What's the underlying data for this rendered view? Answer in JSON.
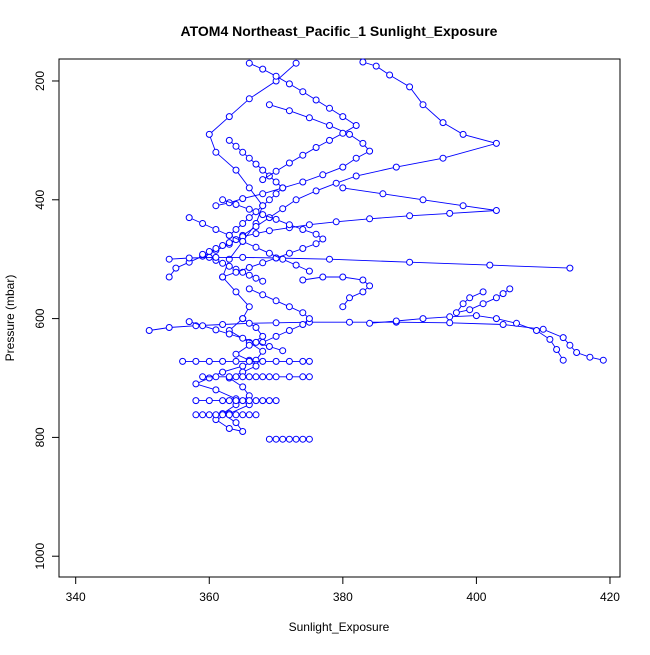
{
  "chart_data": {
    "type": "line",
    "title": "ATOM4 Northeast_Pacific_1 Sunlight_Exposure",
    "xlabel": "Sunlight_Exposure",
    "ylabel": "Pressure (mbar)",
    "xlim": [
      337.5,
      421.5
    ],
    "ylim": [
      1035,
      163
    ],
    "y_reversed": true,
    "x_ticks": [
      340,
      360,
      380,
      400,
      420
    ],
    "y_ticks": [
      200,
      400,
      600,
      800,
      1000
    ],
    "grid": false,
    "marker": "open-circle",
    "line_color": "#0000ff",
    "series": [
      {
        "x": [
          373,
          370,
          366,
          363,
          360,
          361,
          364,
          366,
          368,
          367,
          365,
          363,
          362,
          364,
          366,
          365,
          363,
          366,
          368,
          367,
          365,
          362,
          360,
          358,
          361,
          364,
          366,
          363,
          361,
          363,
          365,
          364,
          362,
          364,
          366,
          365,
          363,
          365,
          367,
          366,
          364,
          366,
          368,
          367,
          365
        ],
        "y": [
          170,
          200,
          230,
          260,
          290,
          320,
          350,
          380,
          410,
          440,
          470,
          500,
          530,
          555,
          580,
          600,
          620,
          640,
          655,
          670,
          680,
          690,
          700,
          710,
          720,
          735,
          745,
          760,
          770,
          785,
          790,
          775,
          760,
          745,
          730,
          715,
          700,
          690,
          680,
          670,
          660,
          645,
          630,
          615,
          600
        ]
      },
      {
        "x": [
          383,
          385,
          387,
          390,
          392,
          395,
          398,
          403,
          395,
          388,
          382,
          379,
          376,
          373,
          371,
          369,
          367,
          365,
          363,
          361,
          359,
          357,
          355,
          354
        ],
        "y": [
          168,
          175,
          190,
          210,
          240,
          270,
          290,
          305,
          330,
          345,
          360,
          372,
          385,
          400,
          415,
          430,
          445,
          460,
          475,
          485,
          495,
          505,
          515,
          530
        ]
      },
      {
        "x": [
          380,
          386,
          392,
          398,
          403,
          396,
          390,
          384,
          379,
          375,
          372,
          369,
          367,
          365,
          364,
          363,
          362,
          361,
          360,
          359,
          360,
          361,
          362,
          363,
          364,
          365,
          366,
          367,
          368
        ],
        "y": [
          380,
          390,
          400,
          410,
          418,
          423,
          427,
          432,
          437,
          442,
          447,
          452,
          457,
          462,
          467,
          472,
          477,
          482,
          487,
          492,
          497,
          502,
          507,
          512,
          517,
          522,
          527,
          532,
          537
        ]
      },
      {
        "x": [
          414,
          402,
          390,
          378,
          370,
          365,
          361,
          357,
          354
        ],
        "y": [
          515,
          510,
          505,
          500,
          498,
          497,
          497,
          498,
          500
        ]
      },
      {
        "x": [
          369,
          372,
          375,
          378,
          381,
          383,
          384,
          382,
          380,
          377,
          374,
          371,
          368,
          365,
          363,
          361
        ],
        "y": [
          240,
          250,
          262,
          275,
          290,
          305,
          318,
          330,
          345,
          358,
          370,
          380,
          390,
          398,
          405,
          410
        ]
      },
      {
        "x": [
          351,
          354,
          358,
          362,
          366,
          370,
          375,
          381,
          388,
          396,
          404,
          410,
          413,
          414,
          415,
          417,
          419
        ],
        "y": [
          620,
          615,
          612,
          610,
          608,
          607,
          606,
          606,
          606,
          607,
          610,
          618,
          632,
          645,
          657,
          665,
          670
        ]
      },
      {
        "x": [
          384,
          388,
          392,
          396,
          400,
          403,
          406,
          409,
          411,
          412,
          413
        ],
        "y": [
          608,
          604,
          600,
          597,
          595,
          600,
          608,
          620,
          635,
          652,
          670
        ]
      },
      {
        "x": [
          401,
          399,
          398,
          397,
          399,
          401,
          403,
          404,
          405
        ],
        "y": [
          555,
          565,
          575,
          590,
          585,
          575,
          565,
          558,
          550
        ]
      },
      {
        "x": [
          380,
          381,
          383,
          384,
          383,
          380,
          377,
          374
        ],
        "y": [
          580,
          565,
          555,
          545,
          535,
          530,
          530,
          535
        ]
      },
      {
        "x": [
          362,
          364,
          366,
          368,
          370,
          372,
          374,
          376,
          377,
          376,
          374,
          372,
          370,
          368,
          366,
          364,
          362
        ],
        "y": [
          400,
          408,
          416,
          425,
          433,
          442,
          450,
          458,
          466,
          474,
          482,
          490,
          498,
          506,
          514,
          522,
          530
        ]
      },
      {
        "x": [
          357,
          359,
          361,
          363,
          365,
          367,
          369,
          371,
          373,
          375
        ],
        "y": [
          430,
          440,
          450,
          460,
          470,
          480,
          490,
          500,
          510,
          520
        ]
      },
      {
        "x": [
          363,
          364,
          365,
          366,
          367,
          368,
          369,
          370,
          371,
          370,
          369,
          368,
          367,
          366,
          365,
          364,
          363
        ],
        "y": [
          300,
          310,
          320,
          330,
          340,
          350,
          360,
          370,
          380,
          390,
          400,
          410,
          420,
          430,
          440,
          450,
          460
        ]
      },
      {
        "x": [
          366,
          368,
          370,
          372,
          374,
          376,
          378,
          380,
          382,
          380,
          378,
          376,
          374,
          372,
          370,
          368
        ],
        "y": [
          170,
          180,
          192,
          205,
          218,
          232,
          246,
          260,
          275,
          288,
          300,
          312,
          325,
          338,
          352,
          366
        ]
      },
      {
        "x": [
          366,
          368,
          370,
          372,
          374,
          375,
          374,
          372,
          370,
          368
        ],
        "y": [
          550,
          560,
          570,
          580,
          590,
          600,
          610,
          620,
          630,
          640
        ]
      },
      {
        "x": [
          357,
          359,
          361,
          363,
          365,
          367,
          369,
          371
        ],
        "y": [
          605,
          612,
          619,
          626,
          633,
          640,
          647,
          654
        ]
      },
      {
        "x": [
          356,
          358,
          360,
          362,
          364,
          366,
          368,
          370,
          372,
          374,
          375
        ],
        "y": [
          672,
          672,
          672,
          672,
          672,
          672,
          672,
          672,
          672,
          672,
          672
        ]
      },
      {
        "x": [
          359,
          361,
          363,
          364,
          365,
          366,
          367,
          368,
          369,
          370,
          372,
          374,
          375
        ],
        "y": [
          698,
          698,
          698,
          698,
          698,
          698,
          698,
          698,
          698,
          698,
          698,
          698,
          698
        ]
      },
      {
        "x": [
          358,
          360,
          362,
          363,
          364,
          365,
          366,
          367,
          368,
          369,
          370
        ],
        "y": [
          738,
          738,
          738,
          738,
          738,
          738,
          738,
          738,
          738,
          738,
          738
        ]
      },
      {
        "x": [
          358,
          359,
          360,
          361,
          362,
          363,
          364,
          365,
          366,
          367
        ],
        "y": [
          762,
          762,
          762,
          762,
          762,
          762,
          762,
          762,
          762,
          762
        ]
      },
      {
        "x": [
          369,
          370,
          371,
          372,
          373,
          374,
          375
        ],
        "y": [
          803,
          803,
          803,
          803,
          803,
          803,
          803
        ]
      }
    ]
  }
}
